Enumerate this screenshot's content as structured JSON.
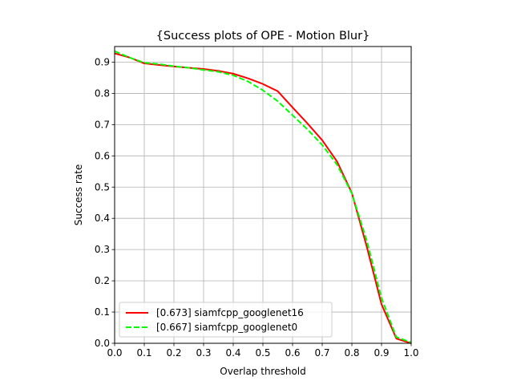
{
  "chart_data": {
    "type": "line",
    "title": "{Success plots of OPE - Motion Blur}",
    "xlabel": "Overlap threshold",
    "ylabel": "Success rate",
    "xlim": [
      0.0,
      1.0
    ],
    "ylim": [
      0.0,
      0.95
    ],
    "grid": true,
    "legend_position": "lower-left",
    "xticks": [
      "0.0",
      "0.1",
      "0.2",
      "0.3",
      "0.4",
      "0.5",
      "0.6",
      "0.7",
      "0.8",
      "0.9",
      "1.0"
    ],
    "yticks": [
      "0.0",
      "0.1",
      "0.2",
      "0.3",
      "0.4",
      "0.5",
      "0.6",
      "0.7",
      "0.8",
      "0.9"
    ],
    "x": [
      0.0,
      0.05,
      0.1,
      0.15,
      0.2,
      0.25,
      0.3,
      0.35,
      0.4,
      0.45,
      0.5,
      0.55,
      0.6,
      0.65,
      0.7,
      0.75,
      0.8,
      0.85,
      0.9,
      0.95,
      1.0
    ],
    "series": [
      {
        "name": "[0.673] siamfcpp_googlenet16",
        "color": "#ff0000",
        "dash": "solid",
        "values": [
          0.928,
          0.915,
          0.896,
          0.891,
          0.886,
          0.882,
          0.878,
          0.872,
          0.863,
          0.848,
          0.83,
          0.807,
          0.755,
          0.704,
          0.65,
          0.582,
          0.481,
          0.31,
          0.125,
          0.015,
          0.0
        ]
      },
      {
        "name": "[0.667] siamfcpp_googlenet0",
        "color": "#00ff00",
        "dash": "dashed",
        "values": [
          0.935,
          0.915,
          0.898,
          0.894,
          0.887,
          0.882,
          0.875,
          0.869,
          0.858,
          0.838,
          0.81,
          0.775,
          0.73,
          0.685,
          0.635,
          0.572,
          0.48,
          0.33,
          0.145,
          0.02,
          0.003
        ]
      }
    ]
  }
}
